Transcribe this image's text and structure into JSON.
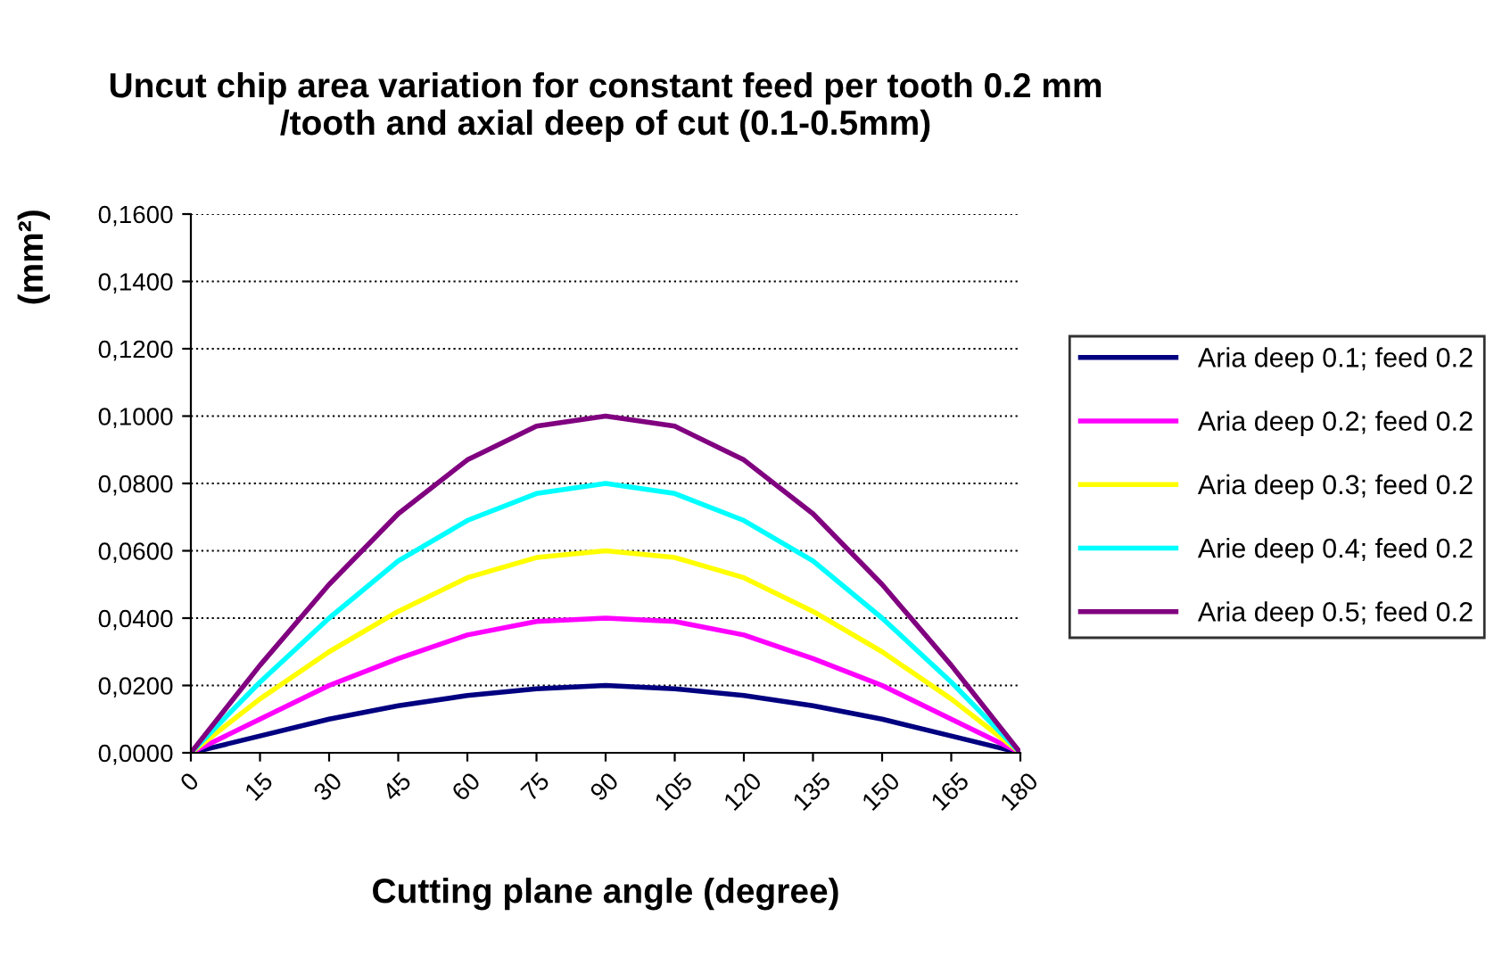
{
  "chart_data": {
    "type": "line",
    "title": "Uncut chip area variation for constant feed per tooth 0.2 mm\n/tooth and axial deep of cut (0.1-0.5mm)",
    "xlabel": "Cutting plane angle (degree)",
    "ylabel": "(mm²)",
    "x": [
      0,
      15,
      30,
      45,
      60,
      75,
      90,
      105,
      120,
      135,
      150,
      165,
      180
    ],
    "series": [
      {
        "name": "Aria deep 0.1; feed 0.2",
        "color": "#000080",
        "values": [
          0,
          0.005,
          0.01,
          0.014,
          0.017,
          0.019,
          0.02,
          0.019,
          0.017,
          0.014,
          0.01,
          0.005,
          0
        ]
      },
      {
        "name": "Aria deep 0.2; feed 0.2",
        "color": "#ff00ff",
        "values": [
          0,
          0.01,
          0.02,
          0.028,
          0.035,
          0.039,
          0.04,
          0.039,
          0.035,
          0.028,
          0.02,
          0.01,
          0
        ]
      },
      {
        "name": "Aria deep 0.3; feed 0.2",
        "color": "#ffff00",
        "values": [
          0,
          0.016,
          0.03,
          0.042,
          0.052,
          0.058,
          0.06,
          0.058,
          0.052,
          0.042,
          0.03,
          0.016,
          0
        ]
      },
      {
        "name": "Arie deep 0.4; feed 0.2",
        "color": "#00ffff",
        "values": [
          0,
          0.021,
          0.04,
          0.057,
          0.069,
          0.077,
          0.08,
          0.077,
          0.069,
          0.057,
          0.04,
          0.021,
          0
        ]
      },
      {
        "name": "Aria deep 0.5; feed 0.2",
        "color": "#800080",
        "values": [
          0,
          0.026,
          0.05,
          0.071,
          0.087,
          0.097,
          0.1,
          0.097,
          0.087,
          0.071,
          0.05,
          0.026,
          0
        ]
      }
    ],
    "xlim": [
      0,
      180
    ],
    "xticks": [
      0,
      15,
      30,
      45,
      60,
      75,
      90,
      105,
      120,
      135,
      150,
      165,
      180
    ],
    "ylim": [
      0,
      0.16
    ],
    "yticks": [
      {
        "value": 0,
        "label": "0,0000"
      },
      {
        "value": 0.02,
        "label": "0,0200"
      },
      {
        "value": 0.04,
        "label": "0,0400"
      },
      {
        "value": 0.06,
        "label": "0,0600"
      },
      {
        "value": 0.08,
        "label": "0,0800"
      },
      {
        "value": 0.1,
        "label": "0,1000"
      },
      {
        "value": 0.12,
        "label": "0,1200"
      },
      {
        "value": 0.14,
        "label": "0,1400"
      },
      {
        "value": 0.16,
        "label": "0,1600"
      }
    ],
    "grid": "y",
    "legend": "right",
    "marker": "none",
    "line_style": "solid"
  }
}
